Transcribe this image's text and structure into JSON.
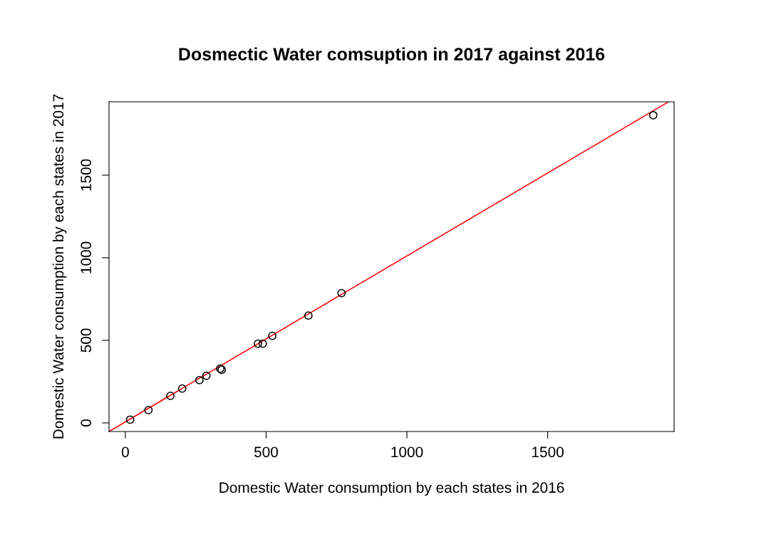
{
  "chart_data": {
    "type": "scatter",
    "title": "Dosmectic Water comsuption in 2017 against 2016",
    "xlabel": "Domestic Water consumption by each states in 2016",
    "ylabel": "Domestic Water consumption by each states in 2017",
    "grid": false,
    "legend": false,
    "xlim": [
      -58,
      1949
    ],
    "ylim": [
      -52,
      1944
    ],
    "xticks": [
      0,
      500,
      1000,
      1500
    ],
    "yticks": [
      0,
      500,
      1000,
      1500
    ],
    "series": [
      {
        "marker": "circle",
        "color": "#000000",
        "x": [
          17,
          82,
          160,
          202,
          263,
          288,
          337,
          342,
          471,
          488,
          522,
          650,
          768,
          1875
        ],
        "values": [
          20,
          78,
          164,
          208,
          259,
          286,
          329,
          322,
          480,
          480,
          527,
          650,
          786,
          1863
        ]
      },
      {
        "type": "line",
        "color": "#ff0000",
        "line_style": "solid",
        "x": [
          -58,
          1929
        ],
        "values": [
          -52,
          1944
        ]
      }
    ]
  }
}
